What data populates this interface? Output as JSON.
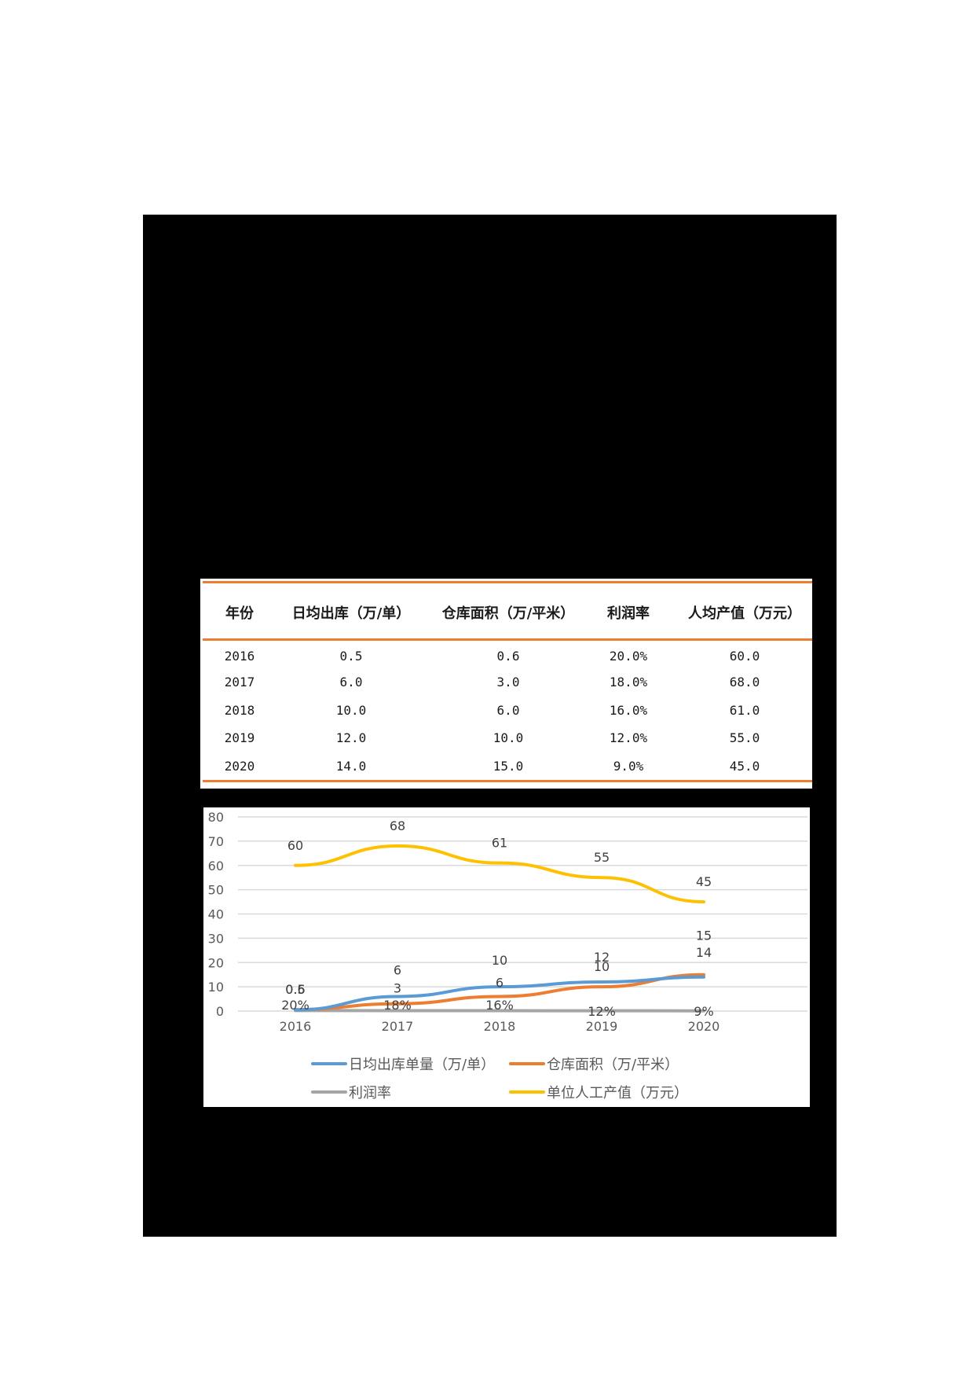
{
  "table": {
    "headers": [
      "年份",
      "日均出库（万/单）",
      "仓库面积（万/平米）",
      "利润率",
      "人均产值（万元）"
    ],
    "rows": [
      [
        "2016",
        "0.5",
        "0.6",
        "20.0%",
        "60.0"
      ],
      [
        "2017",
        "6.0",
        "3.0",
        "18.0%",
        "68.0"
      ],
      [
        "2018",
        "10.0",
        "6.0",
        "16.0%",
        "61.0"
      ],
      [
        "2019",
        "12.0",
        "10.0",
        "12.0%",
        "55.0"
      ],
      [
        "2020",
        "14.0",
        "15.0",
        "9.0%",
        "45.0"
      ]
    ],
    "rule_color": "#ed7d31"
  },
  "chart_data": {
    "type": "line",
    "title": "",
    "xlabel": "",
    "ylabel": "",
    "categories": [
      "2016",
      "2017",
      "2018",
      "2019",
      "2020"
    ],
    "ylim": [
      0,
      80
    ],
    "yticks": [
      "0",
      "10",
      "20",
      "30",
      "40",
      "50",
      "60",
      "70",
      "80"
    ],
    "grid": true,
    "legend_position": "bottom",
    "series": [
      {
        "name": "日均出库单量（万/单）",
        "color": "#5b9bd5",
        "values": [
          0.5,
          6,
          10,
          12,
          14
        ],
        "labels": [
          "0.5",
          "6",
          "10",
          "12",
          "14"
        ]
      },
      {
        "name": "仓库面积（万/平米）",
        "color": "#ed7d31",
        "values": [
          0.6,
          3,
          6,
          10,
          15
        ],
        "labels": [
          "0.6",
          "3",
          "6",
          "10",
          "15"
        ]
      },
      {
        "name": "利润率",
        "color": "#a5a5a5",
        "values": [
          0.2,
          0.18,
          0.16,
          0.12,
          0.09
        ],
        "labels": [
          "20%",
          "18%",
          "16%",
          "12%",
          "9%"
        ]
      },
      {
        "name": "单位人工产值（万元）",
        "color": "#ffc000",
        "values": [
          60,
          68,
          61,
          55,
          45
        ],
        "labels": [
          "60",
          "68",
          "61",
          "55",
          "45"
        ]
      }
    ]
  },
  "legend": {
    "items": [
      {
        "label": "日均出库单量（万/单）",
        "color": "#5b9bd5"
      },
      {
        "label": "仓库面积（万/平米）",
        "color": "#ed7d31"
      },
      {
        "label": "利润率",
        "color": "#a5a5a5"
      },
      {
        "label": "单位人工产值（万元）",
        "color": "#ffc000"
      }
    ]
  }
}
